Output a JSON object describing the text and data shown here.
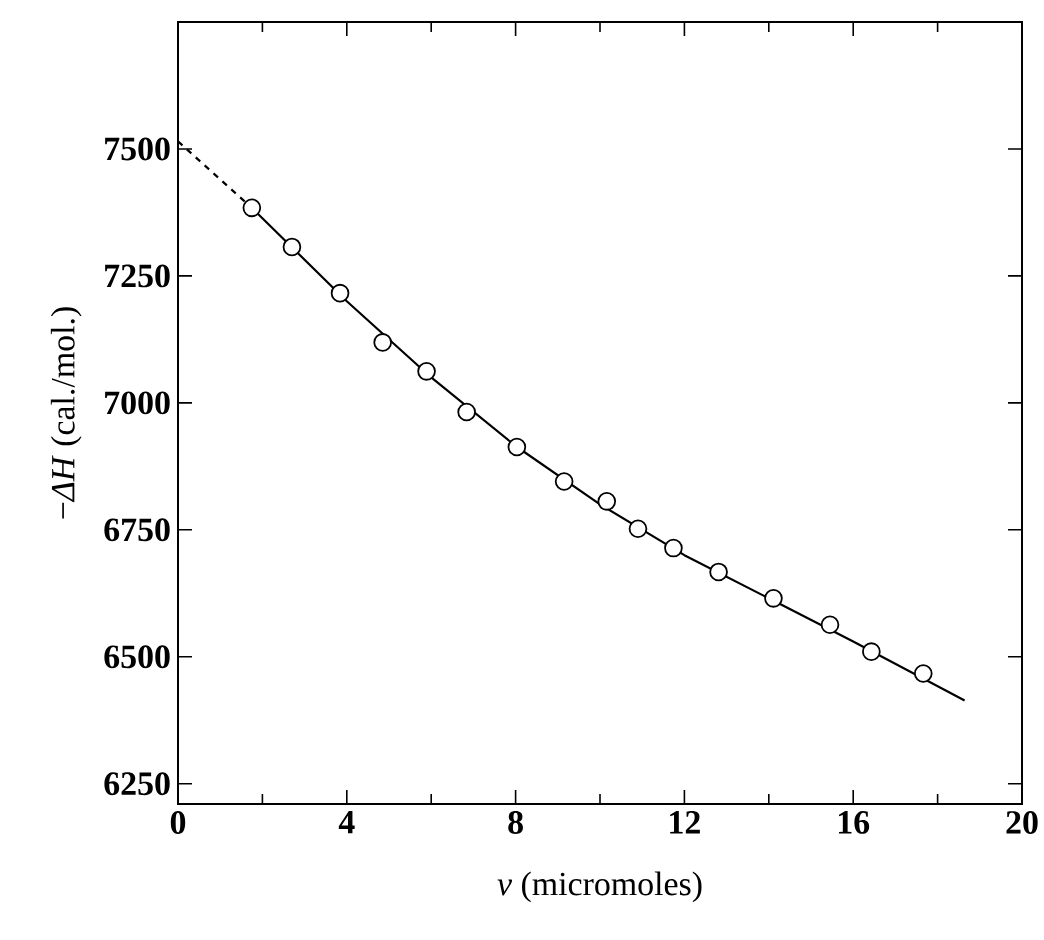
{
  "chart_data": {
    "type": "scatter",
    "xlabel": "*v* (micromoles)",
    "ylabel": "−*ΔH* (cal./mol.)",
    "xlim": [
      0,
      20
    ],
    "ylim": [
      6210,
      7750
    ],
    "xticks": [
      0,
      4,
      8,
      12,
      16,
      20
    ],
    "yticks": [
      6250,
      6500,
      6750,
      7000,
      7250,
      7500
    ],
    "marker": "circle",
    "grid": false,
    "series": [
      {
        "color": "#000000",
        "x": [
          1.75,
          2.7,
          3.84,
          4.85,
          5.89,
          6.84,
          8.03,
          9.15,
          10.16,
          10.9,
          11.74,
          12.81,
          14.11,
          15.45,
          16.43,
          17.66
        ],
        "values": [
          7384,
          7307,
          7216,
          7119,
          7062,
          6982,
          6913,
          6845,
          6806,
          6752,
          6714,
          6667,
          6615,
          6563,
          6510,
          6467
        ]
      },
      {
        "type": "line",
        "color": "#000000",
        "line_style": "dashed",
        "marker": "none",
        "x": [
          0,
          1.75
        ],
        "values": [
          7515,
          7384
        ]
      },
      {
        "type": "line",
        "color": "#000000",
        "line_style": "solid",
        "marker": "none",
        "x": [
          1.75,
          4,
          6,
          8,
          10,
          12,
          14,
          16,
          18.64
        ],
        "values": [
          7384,
          7200,
          7050,
          6915,
          6800,
          6700,
          6615,
          6530,
          6414
        ]
      }
    ]
  }
}
